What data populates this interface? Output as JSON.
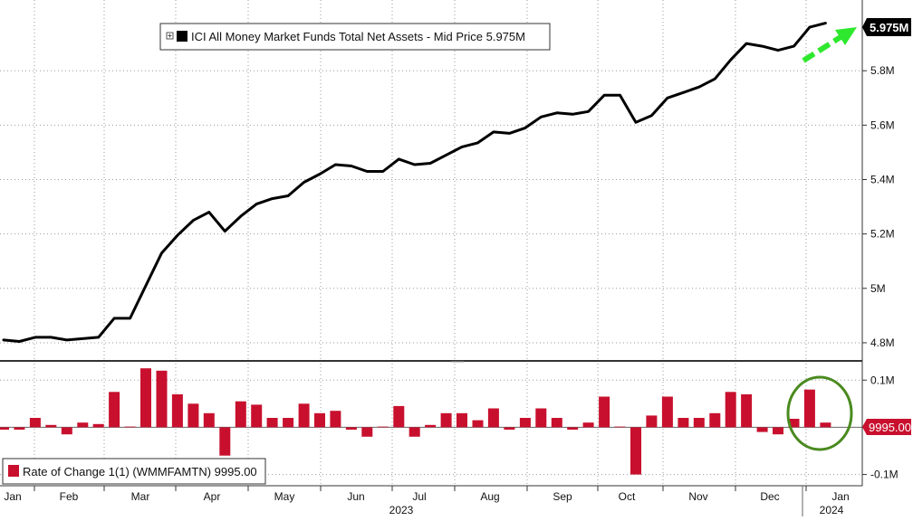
{
  "chart_data": [
    {
      "type": "line",
      "legend": {
        "label": "ICI All Money Market Funds Total Net Assets - Mid Price 5.975M",
        "icon": "legend-toggle-icon",
        "placement": "top-left"
      },
      "last_value_label": "5.975M",
      "y_tick_labels": [
        "4.8M",
        "5M",
        "5.2M",
        "5.4M",
        "5.6M",
        "5.8M"
      ],
      "y_ticks": [
        4.8,
        5.0,
        5.2,
        5.4,
        5.6,
        5.8
      ],
      "ylim": [
        4.74,
        6.06
      ],
      "grid": true,
      "x_unit": "weeks from first Jan 2023 observation",
      "annotation": "green dashed arrow pointing up-right at the latest value",
      "colors": {
        "line": "#000000",
        "arrow": "#2ee82e",
        "last_value_bg": "#000000"
      },
      "series": [
        {
          "values": [
            4.81,
            4.805,
            4.82,
            4.82,
            4.81,
            4.815,
            4.82,
            4.89,
            4.89,
            5.01,
            5.13,
            5.195,
            5.25,
            5.28,
            5.21,
            5.265,
            5.31,
            5.33,
            5.34,
            5.39,
            5.42,
            5.455,
            5.45,
            5.43,
            5.43,
            5.475,
            5.455,
            5.46,
            5.49,
            5.52,
            5.535,
            5.575,
            5.57,
            5.59,
            5.63,
            5.645,
            5.64,
            5.65,
            5.71,
            5.71,
            5.61,
            5.635,
            5.7,
            5.72,
            5.74,
            5.77,
            5.84,
            5.9,
            5.89,
            5.875,
            5.89,
            5.96,
            5.975
          ]
        }
      ]
    },
    {
      "type": "bar",
      "legend": {
        "label": "Rate of Change 1(1) (WMMFAMTN) 9995.00",
        "placement": "bottom-left"
      },
      "last_value_label": "9995.00",
      "y_tick_labels": [
        "0.1M",
        "-0.1M"
      ],
      "y_ticks": [
        0.1,
        -0.1
      ],
      "ylim": [
        -0.12,
        0.135
      ],
      "grid": true,
      "annotation": "green ellipse circling the most recent bars",
      "colors": {
        "bar": "#c8102e",
        "ellipse": "#4a8a1f",
        "last_value_bg": "#c8102e"
      },
      "series": [
        {
          "values": [
            -0.005,
            -0.005,
            0.02,
            0.005,
            -0.015,
            0.01,
            0.007,
            0.075,
            0.0,
            0.125,
            0.12,
            0.07,
            0.05,
            0.03,
            -0.06,
            0.055,
            0.048,
            0.02,
            0.02,
            0.05,
            0.03,
            0.035,
            -0.005,
            -0.02,
            0.0,
            0.045,
            -0.02,
            0.005,
            0.03,
            0.03,
            0.015,
            0.04,
            -0.005,
            0.02,
            0.04,
            0.02,
            -0.005,
            0.01,
            0.065,
            0.0,
            -0.1,
            0.025,
            0.065,
            0.02,
            0.02,
            0.03,
            0.075,
            0.07,
            -0.01,
            -0.015,
            0.018,
            0.08,
            0.01
          ]
        }
      ]
    }
  ],
  "x_axis": {
    "month_labels": [
      "Jan",
      "Feb",
      "Mar",
      "Apr",
      "May",
      "Jun",
      "Jul",
      "Aug",
      "Sep",
      "Oct",
      "Nov",
      "Dec",
      "Jan"
    ],
    "year_labels": [
      "2023",
      "2024"
    ]
  }
}
